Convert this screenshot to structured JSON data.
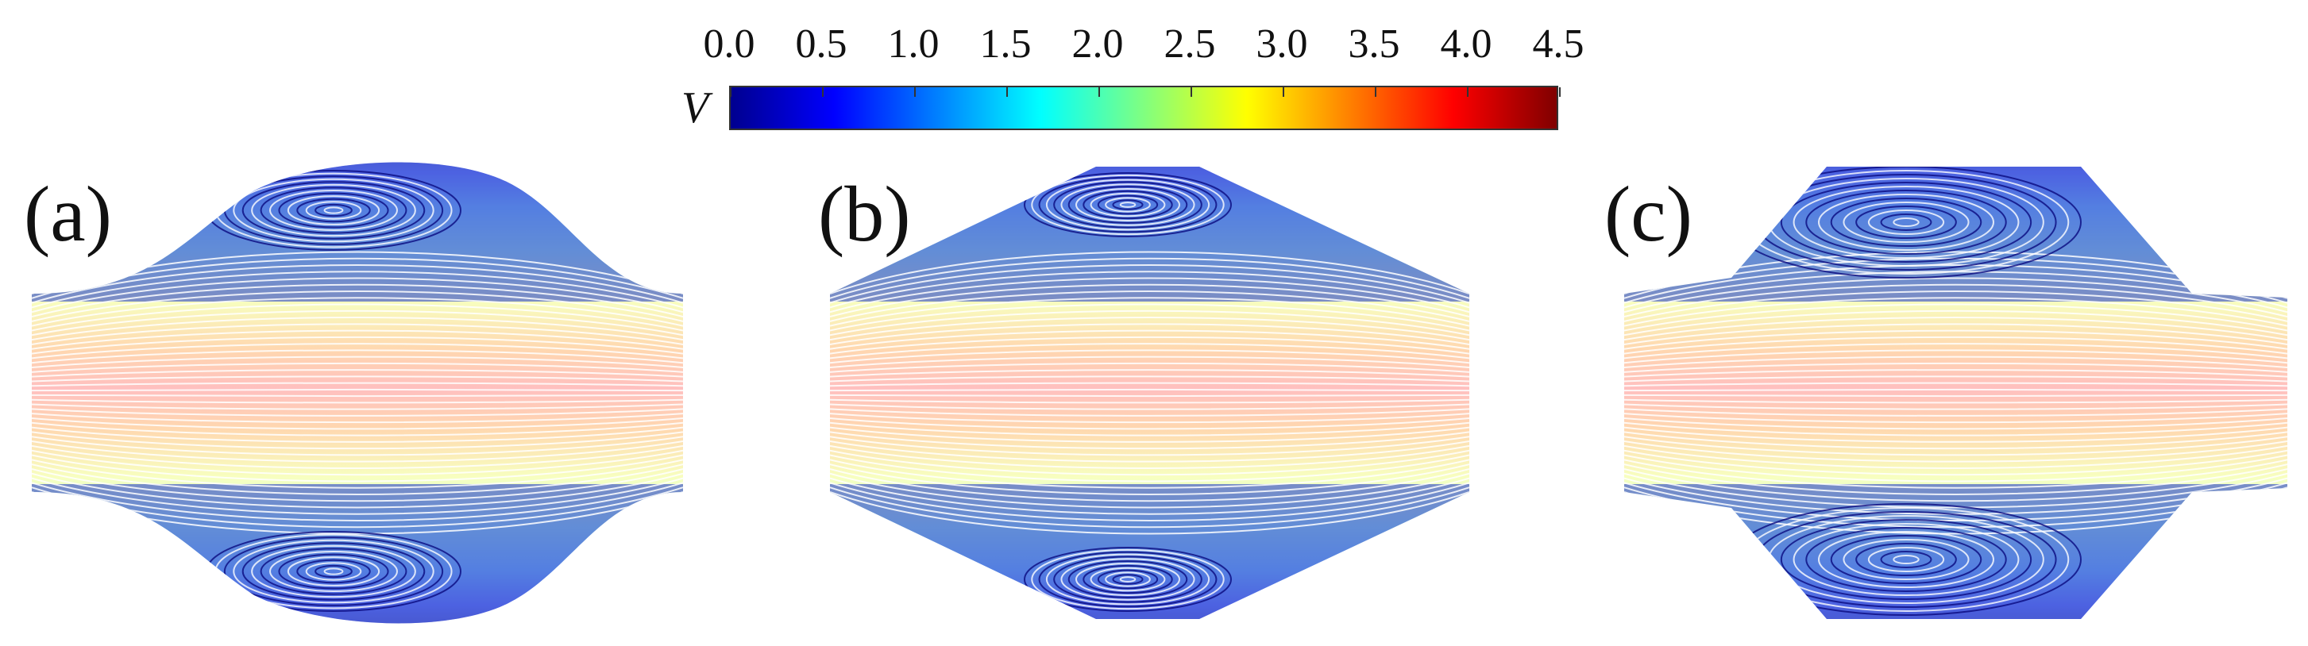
{
  "colorbar": {
    "variable": "V",
    "min": 0.0,
    "max": 4.5,
    "ticks": [
      "0.0",
      "0.5",
      "1.0",
      "1.5",
      "2.0",
      "2.5",
      "3.0",
      "3.5",
      "4.0",
      "4.5"
    ],
    "colormap": [
      "#00008f",
      "#0000ff",
      "#0080ff",
      "#00ffff",
      "#80ff80",
      "#ffff00",
      "#ff8000",
      "#ff0000",
      "#800000"
    ]
  },
  "panels": [
    {
      "label": "(a)",
      "shape": "curved"
    },
    {
      "label": "(b)",
      "shape": "diamond"
    },
    {
      "label": "(c)",
      "shape": "octagon"
    }
  ]
}
